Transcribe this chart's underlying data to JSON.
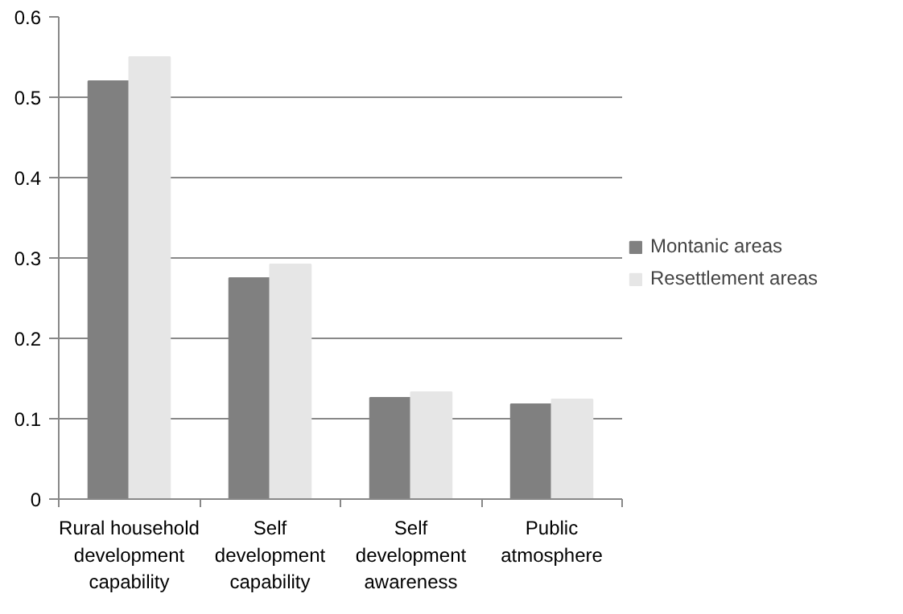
{
  "chart_data": {
    "type": "bar",
    "categories": [
      "Rural household\ndevelopment\ncapability",
      "Self\ndevelopment\ncapability",
      "Self\ndevelopment\nawareness",
      "Public\natmosphere"
    ],
    "series": [
      {
        "name": "Montanic areas",
        "color": "#808080",
        "values": [
          0.52,
          0.275,
          0.126,
          0.118
        ]
      },
      {
        "name": "Resettlement areas",
        "color": "#e6e6e6",
        "values": [
          0.55,
          0.292,
          0.133,
          0.124
        ]
      }
    ],
    "ylim": [
      0,
      0.6
    ],
    "yticks": [
      0,
      0.1,
      0.2,
      0.3,
      0.4,
      0.5,
      0.6
    ],
    "grid": "y",
    "legend": "right"
  }
}
